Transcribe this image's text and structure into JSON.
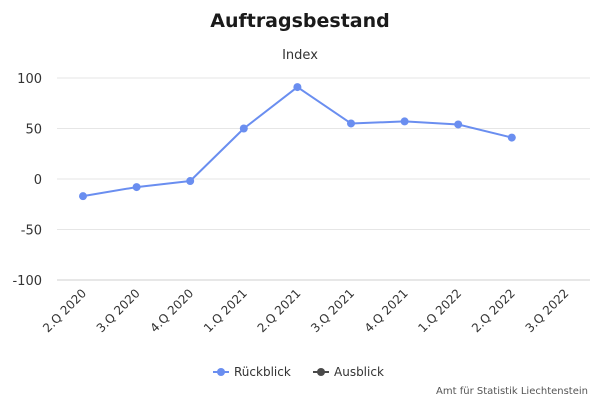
{
  "chart_data": {
    "type": "line",
    "title": "Auftragsbestand",
    "subtitle": "Index",
    "categories": [
      "2.Q 2020",
      "3.Q 2020",
      "4.Q 2020",
      "1.Q 2021",
      "2.Q 2021",
      "3.Q 2021",
      "4.Q 2021",
      "1.Q 2022",
      "2.Q 2022",
      "3.Q 2022"
    ],
    "yticks": [
      "100",
      "50",
      "0",
      "-50",
      "-100"
    ],
    "ylim": [
      -100,
      100
    ],
    "grid": true,
    "legend_position": "bottom-center",
    "series": [
      {
        "name": "Rückblick",
        "color": "#6a8ef0",
        "values": [
          -17,
          -8,
          -2,
          50,
          91,
          55,
          57,
          54,
          41,
          null
        ]
      },
      {
        "name": "Ausblick",
        "color": "#4a4a4a",
        "values": [
          null,
          null,
          null,
          null,
          null,
          null,
          null,
          null,
          null,
          null
        ]
      }
    ],
    "credit": "Amt für Statistik Liechtenstein"
  }
}
